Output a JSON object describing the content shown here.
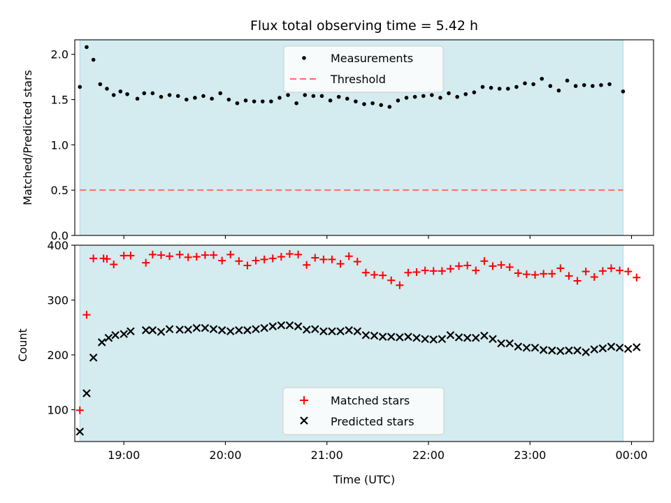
{
  "chart_data": [
    {
      "type": "scatter",
      "title": "Flux total observing time = 5.42 h",
      "xlabel": "",
      "ylabel": "Matched/Predicted stars",
      "xlim": [
        "18:31",
        "00:13"
      ],
      "ylim": [
        0,
        2.16
      ],
      "yticks": [
        "0.0",
        "0.5",
        "1.0",
        "1.5",
        "2.0"
      ],
      "observing_window": [
        "18:34",
        "23:55"
      ],
      "legend_position": "upper center",
      "series": [
        {
          "name": "Measurements",
          "marker": "dot",
          "color": "#000000",
          "points": [
            [
              "18:34",
              1.64
            ],
            [
              "18:38",
              2.08
            ],
            [
              "18:42",
              1.94
            ],
            [
              "18:46",
              1.67
            ],
            [
              "18:50",
              1.62
            ],
            [
              "18:54",
              1.55
            ],
            [
              "18:58",
              1.59
            ],
            [
              "19:02",
              1.56
            ],
            [
              "19:08",
              1.51
            ],
            [
              "19:12",
              1.57
            ],
            [
              "19:17",
              1.57
            ],
            [
              "19:22",
              1.53
            ],
            [
              "19:27",
              1.55
            ],
            [
              "19:32",
              1.54
            ],
            [
              "19:37",
              1.5
            ],
            [
              "19:42",
              1.52
            ],
            [
              "19:47",
              1.54
            ],
            [
              "19:52",
              1.51
            ],
            [
              "19:57",
              1.57
            ],
            [
              "20:02",
              1.5
            ],
            [
              "20:07",
              1.46
            ],
            [
              "20:12",
              1.49
            ],
            [
              "20:17",
              1.48
            ],
            [
              "20:22",
              1.48
            ],
            [
              "20:27",
              1.48
            ],
            [
              "20:32",
              1.52
            ],
            [
              "20:37",
              1.55
            ],
            [
              "20:42",
              1.46
            ],
            [
              "20:47",
              1.55
            ],
            [
              "20:52",
              1.54
            ],
            [
              "20:57",
              1.54
            ],
            [
              "21:02",
              1.49
            ],
            [
              "21:07",
              1.53
            ],
            [
              "21:12",
              1.51
            ],
            [
              "21:17",
              1.48
            ],
            [
              "21:22",
              1.45
            ],
            [
              "21:27",
              1.46
            ],
            [
              "21:32",
              1.44
            ],
            [
              "21:37",
              1.42
            ],
            [
              "21:42",
              1.49
            ],
            [
              "21:47",
              1.52
            ],
            [
              "21:52",
              1.53
            ],
            [
              "21:57",
              1.54
            ],
            [
              "22:02",
              1.55
            ],
            [
              "22:07",
              1.52
            ],
            [
              "22:12",
              1.57
            ],
            [
              "22:17",
              1.53
            ],
            [
              "22:22",
              1.56
            ],
            [
              "22:27",
              1.58
            ],
            [
              "22:32",
              1.64
            ],
            [
              "22:37",
              1.63
            ],
            [
              "22:42",
              1.62
            ],
            [
              "22:47",
              1.62
            ],
            [
              "22:52",
              1.64
            ],
            [
              "22:57",
              1.68
            ],
            [
              "23:02",
              1.67
            ],
            [
              "23:07",
              1.73
            ],
            [
              "23:12",
              1.65
            ],
            [
              "23:17",
              1.6
            ],
            [
              "23:22",
              1.71
            ],
            [
              "23:27",
              1.65
            ],
            [
              "23:32",
              1.66
            ],
            [
              "23:37",
              1.65
            ],
            [
              "23:42",
              1.66
            ],
            [
              "23:47",
              1.67
            ],
            [
              "23:55",
              1.59
            ]
          ]
        },
        {
          "name": "Threshold",
          "marker": "dashed-line",
          "color": "#ff6b6b",
          "value": 0.5
        }
      ]
    },
    {
      "type": "scatter",
      "title": "",
      "xlabel": "Time (UTC)",
      "ylabel": "Count",
      "xlim": [
        "18:31",
        "00:13"
      ],
      "ylim": [
        42,
        400
      ],
      "yticks": [
        "100",
        "200",
        "300",
        "400"
      ],
      "xticks": [
        "19:00",
        "20:00",
        "21:00",
        "22:00",
        "23:00",
        "00:00"
      ],
      "observing_window": [
        "18:34",
        "23:55"
      ],
      "legend_position": "lower center",
      "series": [
        {
          "name": "Matched stars",
          "marker": "plus",
          "color": "#ff0000",
          "points": [
            [
              "18:34",
              99
            ],
            [
              "18:38",
              273
            ],
            [
              "18:42",
              376
            ],
            [
              "18:48",
              376
            ],
            [
              "18:50",
              375
            ],
            [
              "18:54",
              365
            ],
            [
              "19:00",
              381
            ],
            [
              "19:04",
              381
            ],
            [
              "19:13",
              368
            ],
            [
              "19:17",
              383
            ],
            [
              "19:22",
              382
            ],
            [
              "19:27",
              380
            ],
            [
              "19:33",
              383
            ],
            [
              "19:38",
              378
            ],
            [
              "19:43",
              379
            ],
            [
              "19:48",
              382
            ],
            [
              "19:53",
              382
            ],
            [
              "19:58",
              372
            ],
            [
              "20:03",
              383
            ],
            [
              "20:08",
              371
            ],
            [
              "20:13",
              363
            ],
            [
              "20:18",
              372
            ],
            [
              "20:23",
              374
            ],
            [
              "20:28",
              376
            ],
            [
              "20:33",
              379
            ],
            [
              "20:38",
              384
            ],
            [
              "20:43",
              383
            ],
            [
              "20:48",
              364
            ],
            [
              "20:53",
              377
            ],
            [
              "20:58",
              374
            ],
            [
              "21:03",
              374
            ],
            [
              "21:08",
              366
            ],
            [
              "21:13",
              380
            ],
            [
              "21:18",
              370
            ],
            [
              "21:23",
              350
            ],
            [
              "21:28",
              346
            ],
            [
              "21:33",
              345
            ],
            [
              "21:38",
              336
            ],
            [
              "21:43",
              327
            ],
            [
              "21:48",
              350
            ],
            [
              "21:53",
              351
            ],
            [
              "21:58",
              354
            ],
            [
              "22:03",
              353
            ],
            [
              "22:08",
              353
            ],
            [
              "22:13",
              357
            ],
            [
              "22:18",
              362
            ],
            [
              "22:23",
              363
            ],
            [
              "22:28",
              354
            ],
            [
              "22:33",
              371
            ],
            [
              "22:38",
              362
            ],
            [
              "22:43",
              364
            ],
            [
              "22:48",
              360
            ],
            [
              "22:53",
              349
            ],
            [
              "22:58",
              347
            ],
            [
              "23:03",
              346
            ],
            [
              "23:08",
              348
            ],
            [
              "23:13",
              348
            ],
            [
              "23:18",
              358
            ],
            [
              "23:23",
              344
            ],
            [
              "23:28",
              335
            ],
            [
              "23:33",
              352
            ],
            [
              "23:38",
              342
            ],
            [
              "23:43",
              353
            ],
            [
              "23:48",
              358
            ],
            [
              "23:53",
              354
            ],
            [
              "23:58",
              352
            ],
            [
              "00:03",
              341
            ]
          ]
        },
        {
          "name": "Predicted stars",
          "marker": "x",
          "color": "#000000",
          "points": [
            [
              "18:34",
              60
            ],
            [
              "18:38",
              130
            ],
            [
              "18:42",
              195
            ],
            [
              "18:47",
              223
            ],
            [
              "18:51",
              231
            ],
            [
              "18:55",
              236
            ],
            [
              "19:00",
              238
            ],
            [
              "19:04",
              243
            ],
            [
              "19:13",
              245
            ],
            [
              "19:17",
              245
            ],
            [
              "19:22",
              242
            ],
            [
              "19:27",
              247
            ],
            [
              "19:33",
              246
            ],
            [
              "19:38",
              246
            ],
            [
              "19:43",
              249
            ],
            [
              "19:48",
              249
            ],
            [
              "19:53",
              247
            ],
            [
              "19:58",
              245
            ],
            [
              "20:03",
              243
            ],
            [
              "20:08",
              245
            ],
            [
              "20:13",
              245
            ],
            [
              "20:18",
              247
            ],
            [
              "20:23",
              249
            ],
            [
              "20:28",
              252
            ],
            [
              "20:33",
              254
            ],
            [
              "20:38",
              254
            ],
            [
              "20:43",
              252
            ],
            [
              "20:48",
              246
            ],
            [
              "20:53",
              247
            ],
            [
              "20:58",
              243
            ],
            [
              "21:03",
              243
            ],
            [
              "21:08",
              243
            ],
            [
              "21:13",
              245
            ],
            [
              "21:18",
              243
            ],
            [
              "21:23",
              236
            ],
            [
              "21:28",
              235
            ],
            [
              "21:33",
              233
            ],
            [
              "21:38",
              233
            ],
            [
              "21:43",
              232
            ],
            [
              "21:48",
              233
            ],
            [
              "21:53",
              231
            ],
            [
              "21:58",
              229
            ],
            [
              "22:03",
              228
            ],
            [
              "22:08",
              229
            ],
            [
              "22:13",
              236
            ],
            [
              "22:18",
              232
            ],
            [
              "22:23",
              231
            ],
            [
              "22:28",
              231
            ],
            [
              "22:33",
              235
            ],
            [
              "22:38",
              229
            ],
            [
              "22:43",
              221
            ],
            [
              "22:48",
              221
            ],
            [
              "22:53",
              215
            ],
            [
              "22:58",
              213
            ],
            [
              "23:03",
              213
            ],
            [
              "23:08",
              209
            ],
            [
              "23:13",
              208
            ],
            [
              "23:18",
              207
            ],
            [
              "23:23",
              208
            ],
            [
              "23:28",
              208
            ],
            [
              "23:33",
              205
            ],
            [
              "23:38",
              210
            ],
            [
              "23:43",
              212
            ],
            [
              "23:48",
              215
            ],
            [
              "23:53",
              213
            ],
            [
              "23:58",
              211
            ],
            [
              "00:03",
              214
            ]
          ]
        }
      ]
    }
  ],
  "colors": {
    "observing_window": "#d4ebf0",
    "observing_window_edge": "#add8e6",
    "threshold": "#ff6b6b",
    "matched": "#ff0000",
    "predicted": "#000000"
  }
}
